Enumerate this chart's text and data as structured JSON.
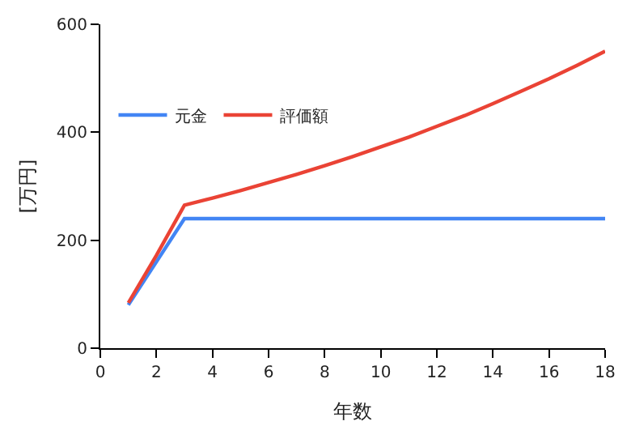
{
  "chart_data": {
    "type": "line",
    "xlabel": "年数",
    "ylabel": "[万円]",
    "x": [
      1,
      2,
      3,
      4,
      5,
      6,
      7,
      8,
      9,
      10,
      11,
      12,
      13,
      14,
      15,
      16,
      17,
      18
    ],
    "series": [
      {
        "name": "元金",
        "color": "#4285f4",
        "values": [
          80,
          160,
          240,
          240,
          240,
          240,
          240,
          240,
          240,
          240,
          240,
          240,
          240,
          240,
          240,
          240,
          240,
          240
        ]
      },
      {
        "name": "評価額",
        "color": "#ea4335",
        "values": [
          84,
          172,
          265,
          278,
          292,
          307,
          322,
          338,
          355,
          373,
          391,
          411,
          431,
          453,
          476,
          499,
          524,
          550
        ]
      }
    ],
    "xlim": [
      0,
      18
    ],
    "xticks": [
      0,
      2,
      4,
      6,
      8,
      10,
      12,
      14,
      16,
      18
    ],
    "ylim": [
      0,
      600
    ],
    "yticks": [
      0,
      200,
      400,
      600
    ],
    "legend": "top left",
    "marker": "none",
    "line_style": "solid"
  }
}
